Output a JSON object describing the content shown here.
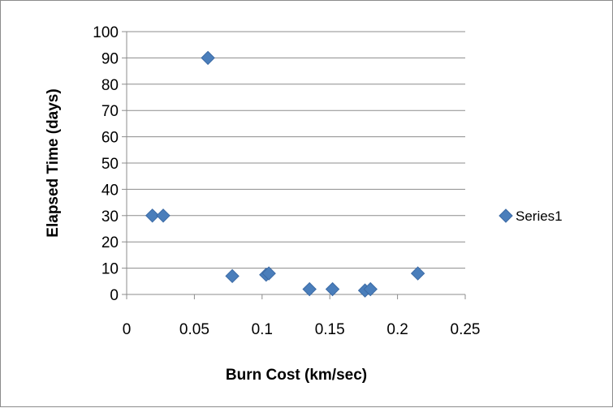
{
  "chart_data": {
    "type": "scatter",
    "title": "",
    "xlabel": "Burn Cost (km/sec)",
    "ylabel": "Elapsed Time (days)",
    "xlim": [
      0,
      0.25
    ],
    "ylim": [
      0,
      100
    ],
    "xticks": [
      "0",
      "0.05",
      "0.1",
      "0.15",
      "0.2",
      "0.25"
    ],
    "yticks": [
      "0",
      "10",
      "20",
      "30",
      "40",
      "50",
      "60",
      "70",
      "80",
      "90",
      "100"
    ],
    "grid": "horizontal",
    "legend_position": "right",
    "marker": "diamond",
    "series": [
      {
        "name": "Series1",
        "color": "#4a7ebb",
        "points": [
          {
            "x": 0.019,
            "y": 30
          },
          {
            "x": 0.027,
            "y": 30
          },
          {
            "x": 0.06,
            "y": 90
          },
          {
            "x": 0.078,
            "y": 7
          },
          {
            "x": 0.103,
            "y": 7.5
          },
          {
            "x": 0.105,
            "y": 8
          },
          {
            "x": 0.135,
            "y": 2
          },
          {
            "x": 0.152,
            "y": 2
          },
          {
            "x": 0.176,
            "y": 1.5
          },
          {
            "x": 0.18,
            "y": 2
          },
          {
            "x": 0.215,
            "y": 8
          }
        ]
      }
    ]
  }
}
